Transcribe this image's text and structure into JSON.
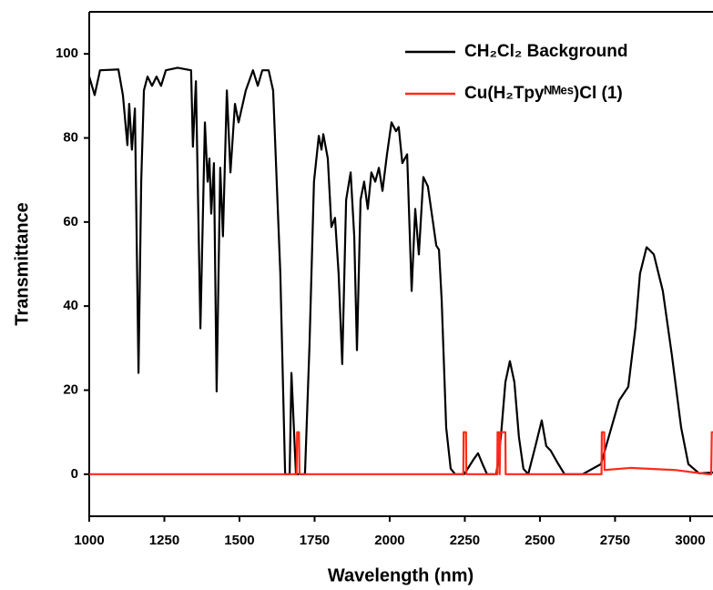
{
  "chart_data": {
    "type": "line",
    "xlabel": "Wavelength (nm)",
    "ylabel": "Transmittance",
    "xlim": [
      1000,
      3076
    ],
    "ylim": [
      -10,
      110
    ],
    "xticks": [
      1000,
      1250,
      1500,
      1750,
      2000,
      2250,
      2500,
      2750,
      3000
    ],
    "yticks": [
      0,
      20,
      40,
      60,
      80,
      100
    ],
    "legend": "upper right",
    "series": [
      {
        "name": "CH₂Cl₂ Background",
        "color": "#000000",
        "x": [
          1000,
          1018,
          1036,
          1097,
          1112,
          1127,
          1133,
          1142,
          1152,
          1164,
          1173,
          1182,
          1194,
          1209,
          1224,
          1239,
          1255,
          1294,
          1339,
          1345,
          1355,
          1370,
          1385,
          1394,
          1400,
          1406,
          1415,
          1424,
          1436,
          1445,
          1458,
          1470,
          1485,
          1497,
          1521,
          1545,
          1561,
          1576,
          1597,
          1612,
          1636,
          1652,
          1667,
          1673,
          1688,
          1718,
          1733,
          1748,
          1764,
          1773,
          1779,
          1794,
          1806,
          1818,
          1830,
          1842,
          1855,
          1870,
          1882,
          1891,
          1903,
          1915,
          1927,
          1939,
          1952,
          1964,
          1976,
          1991,
          2006,
          2021,
          2030,
          2042,
          2058,
          2073,
          2085,
          2097,
          2112,
          2127,
          2142,
          2155,
          2164,
          2173,
          2188,
          2203,
          2218,
          2248,
          2279,
          2294,
          2309,
          2324,
          2355,
          2370,
          2385,
          2400,
          2415,
          2430,
          2445,
          2461,
          2485,
          2506,
          2521,
          2536,
          2558,
          2582,
          2642,
          2703,
          2764,
          2794,
          2818,
          2833,
          2855,
          2879,
          2909,
          2939,
          2970,
          2994,
          3030,
          3076
        ],
        "values": [
          94.6,
          90.2,
          96.1,
          96.3,
          90.2,
          78.3,
          88.1,
          77.2,
          87,
          24.1,
          69.6,
          91.3,
          94.6,
          92.4,
          94.6,
          92.4,
          96.1,
          96.7,
          96.1,
          77.9,
          93.5,
          34.7,
          83.7,
          69.6,
          75.1,
          62,
          74,
          19.7,
          72.9,
          56.6,
          91.3,
          71.8,
          88.1,
          83.7,
          91.3,
          96.1,
          92.4,
          96.1,
          96.1,
          91.3,
          47.7,
          0,
          0,
          24.1,
          0,
          0,
          30.6,
          69.6,
          80.5,
          77.2,
          80.9,
          75.1,
          58.8,
          61,
          47.7,
          26.2,
          65.3,
          71.8,
          56.6,
          29.5,
          65.3,
          69.6,
          63.1,
          71.8,
          69.6,
          72.9,
          67.4,
          76.1,
          83.7,
          81.6,
          82.6,
          74,
          76.1,
          43.6,
          63.1,
          52.3,
          70.7,
          68.5,
          61,
          54.4,
          53.4,
          41.4,
          11.1,
          1.3,
          0,
          0,
          3.5,
          5,
          2.4,
          0,
          0,
          8.9,
          21.9,
          26.9,
          21.9,
          8.9,
          1.3,
          0,
          6.7,
          12.8,
          6.7,
          5.6,
          2.8,
          0,
          0,
          2.4,
          17.6,
          20.8,
          34.9,
          47.7,
          54,
          52.3,
          43.6,
          28.4,
          11.1,
          2.4,
          0.2,
          0.4
        ]
      },
      {
        "name": "Cu(H₂Tpyᴺᴹᵉˢ)Cl (1)",
        "color": "#ff2a1a",
        "x": [
          1000,
          1690,
          1692,
          1698,
          1700,
          2245,
          2246,
          2254,
          2255,
          2358,
          2359,
          2364,
          2366,
          2368,
          2385,
          2386,
          2705,
          2706,
          2714,
          2715,
          2800,
          2950,
          3060,
          3070,
          3072,
          3076
        ],
        "values": [
          0,
          0,
          10,
          10,
          0,
          0,
          10,
          10,
          0,
          0,
          10,
          10,
          0,
          10,
          10,
          0,
          0,
          10,
          10,
          1,
          1.5,
          1,
          0,
          0,
          10,
          10
        ]
      }
    ]
  }
}
